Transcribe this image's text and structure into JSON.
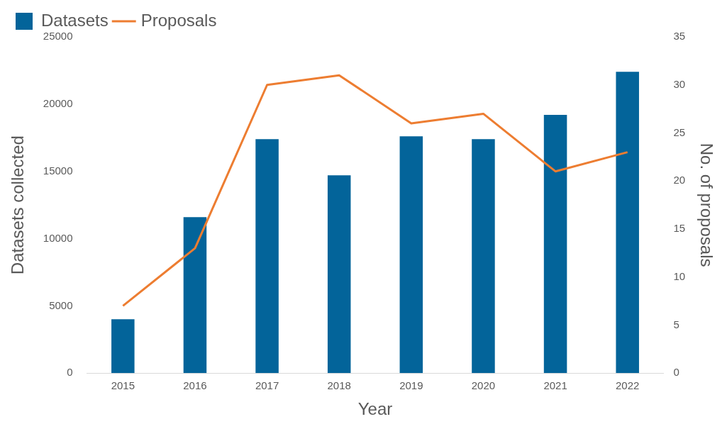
{
  "chart_data": {
    "type": "bar",
    "categories": [
      "2015",
      "2016",
      "2017",
      "2018",
      "2019",
      "2020",
      "2021",
      "2022"
    ],
    "series": [
      {
        "name": "Datasets",
        "color": "#03649a",
        "values": [
          4000,
          11600,
          17400,
          14700,
          17600,
          17400,
          19200,
          22400
        ]
      },
      {
        "name": "Proposals",
        "type": "line",
        "axis": "y2",
        "color": "#ed7d31",
        "values": [
          7,
          13,
          30,
          31,
          26,
          27,
          21,
          23
        ]
      }
    ],
    "xlabel": "Year",
    "ylabel": "Datasets collected",
    "y2label": "No. of proposals",
    "ylim": [
      0,
      25000
    ],
    "yticks": [
      0,
      5000,
      10000,
      15000,
      20000,
      25000
    ],
    "y2lim": [
      0,
      35
    ],
    "y2ticks": [
      0,
      5,
      10,
      15,
      20,
      25,
      30,
      35
    ],
    "grid": false,
    "legend": "top left",
    "marker": "none"
  }
}
